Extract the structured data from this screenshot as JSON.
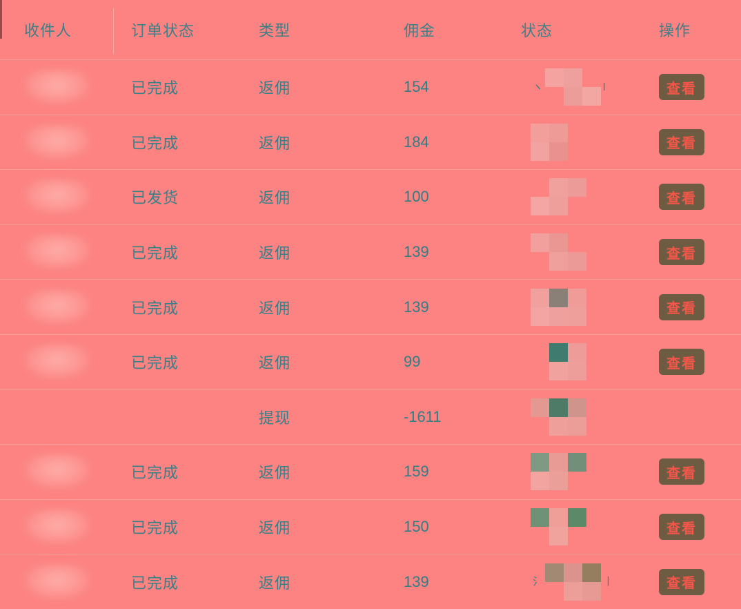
{
  "colors": {
    "background": "#fc8381",
    "header_text": "#3c8087",
    "cell_text": "#35818a",
    "divider": "rgba(255,255,255,0.22)",
    "button_bg": "#6e5c42",
    "button_text": "#f4564a"
  },
  "table": {
    "action_label": "查看",
    "columns": [
      {
        "key": "recipient",
        "label": "收件人"
      },
      {
        "key": "order_status",
        "label": "订单状态"
      },
      {
        "key": "type",
        "label": "类型"
      },
      {
        "key": "commission",
        "label": "佣金"
      },
      {
        "key": "status",
        "label": "状态"
      },
      {
        "key": "operation",
        "label": "操作"
      }
    ],
    "rows": [
      {
        "recipient_redacted": true,
        "order_status": "已完成",
        "type": "返佣",
        "commission": "154",
        "status_mosaic": {
          "mark_left": "ヽ",
          "mark_right": "l",
          "blocks": [
            [
              "#f5a3a0",
              "#eda09d",
              null
            ],
            [
              null,
              "#ea9d99",
              "#f2a7a3"
            ]
          ]
        },
        "has_action": true
      },
      {
        "recipient_redacted": true,
        "order_status": "已完成",
        "type": "返佣",
        "commission": "184",
        "status_mosaic": {
          "mark_left": "",
          "mark_right": "",
          "blocks": [
            [
              "#f29f9c",
              "#ee9a97",
              null
            ],
            [
              "#f0a3a0",
              "#e9918e",
              null
            ]
          ]
        },
        "has_action": true
      },
      {
        "recipient_redacted": true,
        "order_status": "已发货",
        "type": "返佣",
        "commission": "100",
        "status_mosaic": {
          "mark_left": "",
          "mark_right": "",
          "blocks": [
            [
              null,
              "#f0a19e",
              "#ec9b98"
            ],
            [
              "#f3a6a3",
              "#ee9e9b",
              null
            ]
          ]
        },
        "has_action": true
      },
      {
        "recipient_redacted": true,
        "order_status": "已完成",
        "type": "返佣",
        "commission": "139",
        "status_mosaic": {
          "mark_left": "",
          "mark_right": "",
          "blocks": [
            [
              "#f2a09d",
              "#ea9793",
              null
            ],
            [
              null,
              "#ef9f9c",
              "#ec9a97"
            ]
          ]
        },
        "has_action": true
      },
      {
        "recipient_redacted": true,
        "order_status": "已完成",
        "type": "返佣",
        "commission": "139",
        "status_mosaic": {
          "mark_left": "",
          "mark_right": "",
          "blocks": [
            [
              "#f0a09d",
              "#8a8078",
              "#ef9c99"
            ],
            [
              "#f2a5a2",
              "#eda09d",
              "#ee9e9b"
            ]
          ]
        },
        "has_action": true
      },
      {
        "recipient_redacted": true,
        "order_status": "已完成",
        "type": "返佣",
        "commission": "99",
        "status_mosaic": {
          "mark_left": "",
          "mark_right": "",
          "blocks": [
            [
              null,
              "#3f7b6e",
              "#ee9c99"
            ],
            [
              null,
              "#f0a29f",
              "#ed9d9a"
            ]
          ]
        },
        "has_action": true
      },
      {
        "recipient_redacted": false,
        "order_status": "",
        "type": "提现",
        "commission": "-1611",
        "status_mosaic": {
          "mark_left": "",
          "mark_right": "",
          "blocks": [
            [
              "#e39992",
              "#4e7a68",
              "#cf958c"
            ],
            [
              null,
              "#ef9f9a",
              "#eb9d98"
            ]
          ]
        },
        "has_action": false
      },
      {
        "recipient_redacted": true,
        "order_status": "已完成",
        "type": "返佣",
        "commission": "159",
        "status_mosaic": {
          "mark_left": "",
          "mark_right": "",
          "blocks": [
            [
              "#7f9a84",
              "#e89b94",
              "#729079"
            ],
            [
              "#f2a5a0",
              "#ea9f98",
              null
            ]
          ]
        },
        "has_action": true
      },
      {
        "recipient_redacted": true,
        "order_status": "已完成",
        "type": "返佣",
        "commission": "150",
        "status_mosaic": {
          "mark_left": "",
          "mark_right": "",
          "blocks": [
            [
              "#6f9175",
              "#ef9f97",
              "#5c8a68"
            ],
            [
              null,
              "#f0a29c",
              null
            ]
          ]
        },
        "has_action": true
      },
      {
        "recipient_redacted": true,
        "order_status": "已完成",
        "type": "返佣",
        "commission": "139",
        "status_mosaic": {
          "mark_left": "氵",
          "mark_right": "丨",
          "blocks": [
            [
              "#a28974",
              "#dd938d",
              "#957e60"
            ],
            [
              null,
              "#ec9e98",
              "#e79a94"
            ]
          ]
        },
        "has_action": true
      }
    ]
  }
}
